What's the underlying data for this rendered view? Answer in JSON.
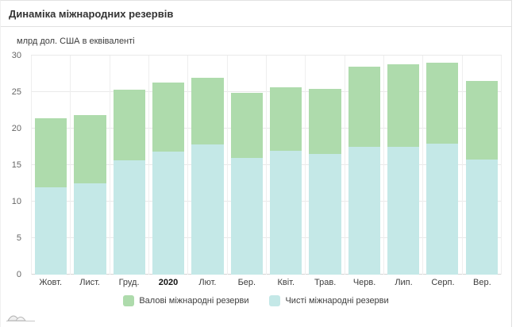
{
  "card": {
    "title": "Динаміка міжнародних резервів"
  },
  "chart_data": {
    "type": "bar",
    "subtype": "overlaid-bars",
    "title": "Динаміка міжнародних резервів",
    "unit_label": "млрд дол. США в еквіваленті",
    "categories": [
      "Жовт.",
      "Лист.",
      "Груд.",
      "2020",
      "Лют.",
      "Бер.",
      "Квіт.",
      "Трав.",
      "Черв.",
      "Лип.",
      "Серп.",
      "Вер."
    ],
    "emphasized_category": "2020",
    "series": [
      {
        "name": "Валові міжнародні резерви",
        "color": "#aedbac",
        "values": [
          21.4,
          21.9,
          25.3,
          26.3,
          27.0,
          24.9,
          25.7,
          25.4,
          28.5,
          28.8,
          29.0,
          26.5
        ]
      },
      {
        "name": "Чисті міжнародні резерви",
        "color": "#c4e8e7",
        "values": [
          12.0,
          12.5,
          15.7,
          16.9,
          17.8,
          16.0,
          17.0,
          16.5,
          17.5,
          17.5,
          17.9,
          15.8
        ]
      }
    ],
    "ylim": [
      0,
      30
    ],
    "yticks": [
      0,
      5,
      10,
      15,
      20,
      25,
      30
    ],
    "grid": true,
    "legend_position": "bottom",
    "colors": {
      "gridline": "#e9e9e9",
      "zero_line": "#d4d4d4",
      "text": "#3c3c3c"
    }
  }
}
